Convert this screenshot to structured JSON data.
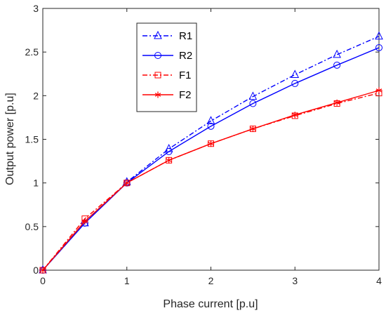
{
  "chart_data": {
    "type": "line",
    "title": "",
    "xlabel": "Phase current [p.u]",
    "ylabel": "Output power [p.u]",
    "xlim": [
      0,
      4
    ],
    "ylim": [
      0,
      3
    ],
    "xticks": [
      0,
      1,
      2,
      3,
      4
    ],
    "yticks": [
      0,
      0.5,
      1,
      1.5,
      2,
      2.5,
      3
    ],
    "xtick_labels": [
      "0",
      "1",
      "2",
      "3",
      "4"
    ],
    "ytick_labels": [
      "0",
      "0.5",
      "1",
      "1.5",
      "2",
      "2.5",
      "3"
    ],
    "grid": false,
    "legend_position": "top-center",
    "x": [
      0,
      0.5,
      1,
      1.5,
      2,
      2.5,
      3,
      3.5,
      4
    ],
    "series": [
      {
        "name": "R1",
        "values": [
          0,
          0.54,
          1.01,
          1.39,
          1.71,
          1.99,
          2.24,
          2.47,
          2.68
        ],
        "color": "#0000ff",
        "dash": "dashdot",
        "marker": "triangle"
      },
      {
        "name": "R2",
        "values": [
          0,
          0.54,
          1.0,
          1.36,
          1.65,
          1.91,
          2.14,
          2.35,
          2.55
        ],
        "color": "#0000ff",
        "dash": "solid",
        "marker": "circle"
      },
      {
        "name": "F1",
        "values": [
          0,
          0.59,
          1.0,
          1.26,
          1.45,
          1.62,
          1.77,
          1.91,
          2.03
        ],
        "color": "#ff0000",
        "dash": "dashdot",
        "marker": "square"
      },
      {
        "name": "F2",
        "values": [
          0,
          0.56,
          1.0,
          1.26,
          1.45,
          1.62,
          1.78,
          1.92,
          2.06
        ],
        "color": "#ff0000",
        "dash": "solid",
        "marker": "asterisk"
      }
    ]
  }
}
